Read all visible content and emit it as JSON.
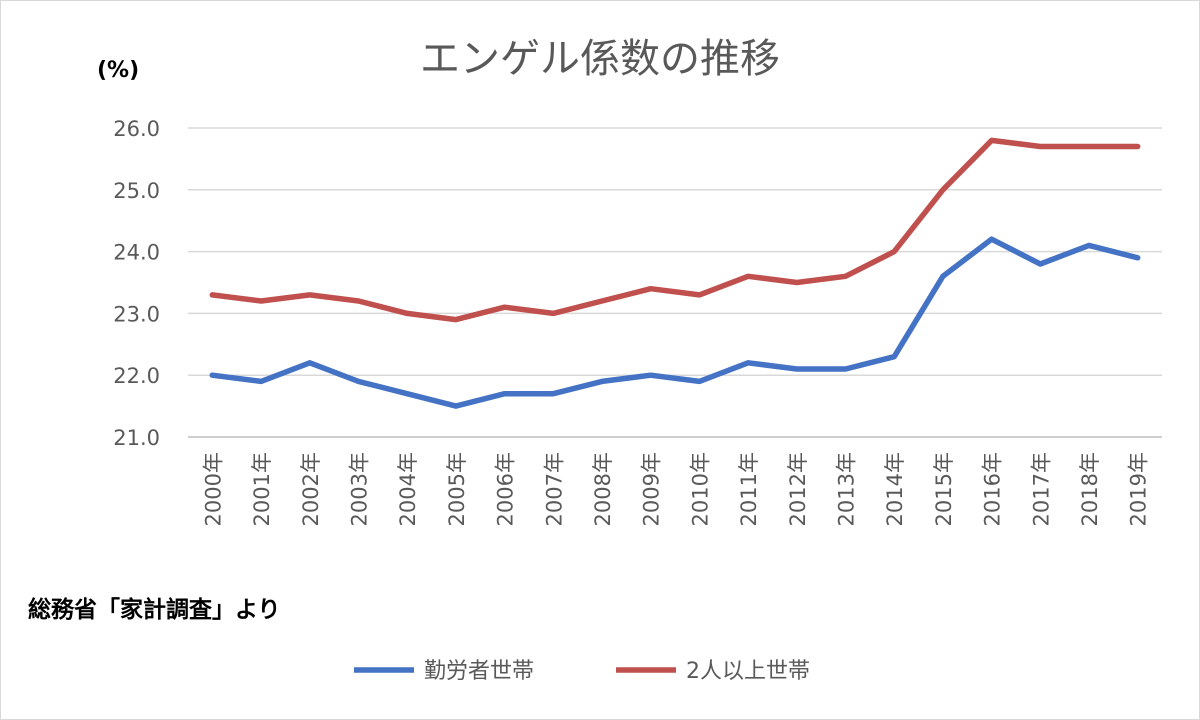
{
  "chart_data": {
    "type": "line",
    "title": "エンゲル係数の推移",
    "unit_label": "(%)",
    "source_note": "総務省「家計調査」より",
    "categories": [
      "2000年",
      "2001年",
      "2002年",
      "2003年",
      "2004年",
      "2005年",
      "2006年",
      "2007年",
      "2008年",
      "2009年",
      "2010年",
      "2011年",
      "2012年",
      "2013年",
      "2014年",
      "2015年",
      "2016年",
      "2017年",
      "2018年",
      "2019年"
    ],
    "ylim": [
      21.0,
      26.0
    ],
    "yticks": [
      "21.0",
      "22.0",
      "23.0",
      "24.0",
      "25.0",
      "26.0"
    ],
    "grid": true,
    "legend_position": "bottom",
    "series": [
      {
        "name": "勤労者世帯",
        "color": "#4472C4",
        "values": [
          22.0,
          21.9,
          22.2,
          21.9,
          21.7,
          21.5,
          21.7,
          21.7,
          21.9,
          22.0,
          21.9,
          22.2,
          22.1,
          22.1,
          22.3,
          23.6,
          24.2,
          23.8,
          24.1,
          23.9
        ]
      },
      {
        "name": "2人以上世帯",
        "color": "#C0504D",
        "values": [
          23.3,
          23.2,
          23.3,
          23.2,
          23.0,
          22.9,
          23.1,
          23.0,
          23.2,
          23.4,
          23.3,
          23.6,
          23.5,
          23.6,
          24.0,
          25.0,
          25.8,
          25.7,
          25.7,
          25.7
        ]
      }
    ]
  }
}
